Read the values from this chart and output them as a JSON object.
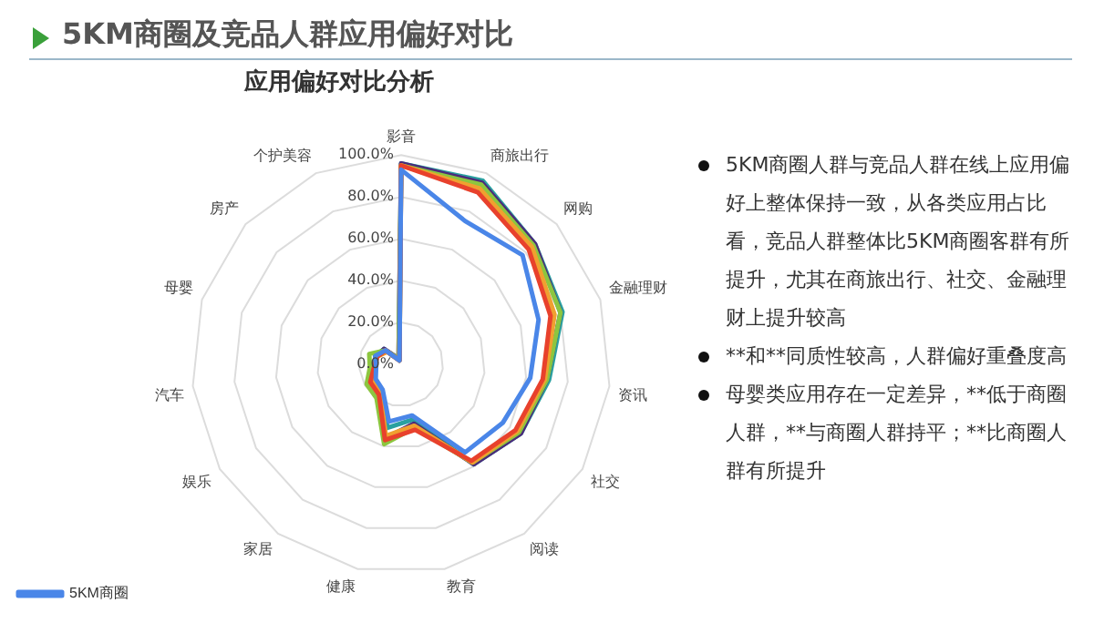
{
  "chart_data": {
    "type": "radar",
    "title": "5KM商圈及竞品人群应用偏好对比",
    "subtitle": "应用偏好对比分析",
    "categories": [
      "影音",
      "商旅出行",
      "网购",
      "金融理财",
      "资讯",
      "社交",
      "阅读",
      "教育",
      "健康",
      "家居",
      "娱乐",
      "汽车",
      "母婴",
      "房产",
      "个护美容"
    ],
    "series": [
      {
        "name": "5KM商圈",
        "color": "#4a86e8",
        "values": [
          93,
          75,
          78,
          69,
          62,
          56,
          52,
          25,
          28,
          15,
          14,
          12,
          13,
          10,
          2
        ]
      },
      {
        "color": "#e8412c",
        "values": [
          95,
          90,
          82,
          75,
          68,
          63,
          57,
          32,
          37,
          18,
          17,
          13,
          12,
          10,
          2
        ]
      },
      {
        "color": "#f0a030",
        "values": [
          95,
          92,
          84,
          77,
          69,
          64,
          58,
          30,
          35,
          17,
          16,
          13,
          12,
          9,
          2
        ]
      },
      {
        "color": "#8cc63f",
        "values": [
          95,
          94,
          85,
          80,
          70,
          65,
          58,
          31,
          39,
          20,
          19,
          15,
          16,
          10,
          3
        ]
      },
      {
        "color": "#4b2a7b",
        "values": [
          96,
          95,
          86,
          80,
          70,
          66,
          59,
          29,
          36,
          18,
          16,
          13,
          12,
          11,
          3
        ]
      },
      {
        "color": "#2aa0a0",
        "values": [
          96,
          96,
          86,
          81,
          71,
          66,
          59,
          27,
          31,
          17,
          15,
          12,
          13,
          11,
          2
        ]
      }
    ],
    "ylim": [
      0,
      100
    ],
    "yticks": [
      {
        "value": 0,
        "label": "0.0%"
      },
      {
        "value": 20,
        "label": "20.0%"
      },
      {
        "value": 40,
        "label": "40.0%"
      },
      {
        "value": 60,
        "label": "60.0%"
      },
      {
        "value": 80,
        "label": "80.0%"
      },
      {
        "value": 100,
        "label": "100.0%"
      }
    ],
    "grid": true,
    "legend": "bottom left",
    "marker": "none",
    "line_style": "solid",
    "annotations": [
      "5KM商圈人群与竞品人群在线上应用偏好上整体保持一致，从各类应用占比看，竞品人群整体比5KM商圈客群有所提升，尤其在商旅出行、社交、金融理财上提升较高",
      "**和**同质性较高，人群偏好重叠度高",
      "母婴类应用存在一定差异，**低于商圈人群，**与商圈人群持平；**比商圈人群有所提升"
    ]
  }
}
